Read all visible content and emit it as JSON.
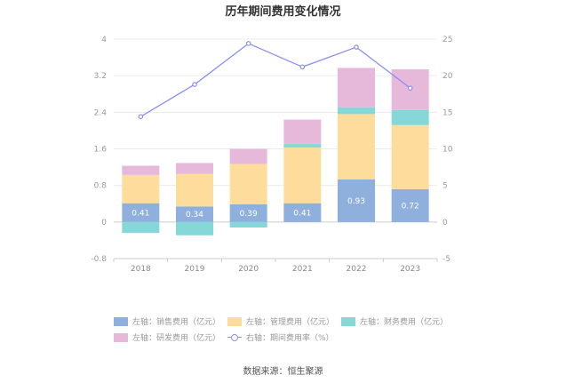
{
  "title": "历年期间费用变化情况",
  "source": "数据来源：恒生聚源",
  "legend": [
    {
      "label": "左轴：销售费用（亿元）",
      "color": "#8fafdc",
      "kind": "bar"
    },
    {
      "label": "左轴：管理费用（亿元）",
      "color": "#fedc9b",
      "kind": "bar"
    },
    {
      "label": "左轴：财务费用（亿元）",
      "color": "#86d7d8",
      "kind": "bar"
    },
    {
      "label": "左轴：研发费用（亿元）",
      "color": "#e6b9db",
      "kind": "bar"
    },
    {
      "label": "右轴：期间费用率（%）",
      "color": "#8a8ef0",
      "kind": "line"
    }
  ],
  "chart_data": {
    "type": "bar",
    "stacked": true,
    "categories": [
      "2018",
      "2019",
      "2020",
      "2021",
      "2022",
      "2023"
    ],
    "y_left": {
      "min": -0.8,
      "max": 4,
      "ticks": [
        "-0.8",
        "0",
        "0.8",
        "1.6",
        "2.4",
        "3.2",
        "4"
      ]
    },
    "y_right": {
      "min": -5,
      "max": 25,
      "ticks": [
        "-5",
        "0",
        "5",
        "10",
        "15",
        "20",
        "25"
      ]
    },
    "series": [
      {
        "name": "左轴：销售费用（亿元）",
        "axis": "left",
        "color": "#8fafdc",
        "values": [
          0.41,
          0.34,
          0.39,
          0.41,
          0.93,
          0.72
        ],
        "labels": [
          "0.41",
          "0.34",
          "0.39",
          "0.41",
          "0.93",
          "0.72"
        ]
      },
      {
        "name": "左轴：管理费用（亿元）",
        "axis": "left",
        "color": "#fedc9b",
        "values": [
          0.62,
          0.71,
          0.88,
          1.22,
          1.43,
          1.4
        ]
      },
      {
        "name": "左轴：财务费用（亿元）",
        "axis": "left",
        "color": "#86d7d8",
        "values": [
          -0.24,
          -0.29,
          -0.12,
          0.08,
          0.15,
          0.33
        ]
      },
      {
        "name": "左轴：研发费用（亿元）",
        "axis": "left",
        "color": "#e6b9db",
        "values": [
          0.2,
          0.24,
          0.33,
          0.53,
          0.86,
          0.89
        ]
      },
      {
        "name": "右轴：期间费用率（%）",
        "axis": "right",
        "type": "line",
        "color": "#8a8ef0",
        "values": [
          14.4,
          18.8,
          24.4,
          21.2,
          23.9,
          18.3
        ]
      }
    ]
  }
}
